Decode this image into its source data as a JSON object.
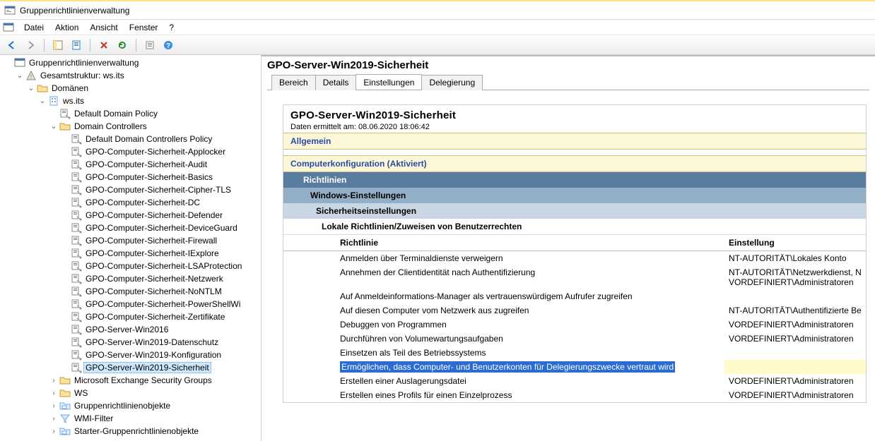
{
  "colors": {
    "accent_blue": "#2b6cd3",
    "highlight_yellow": "#fffac7",
    "cream_band": "#fdf7d9",
    "band1": "#5a7ca0",
    "band2": "#93aec7",
    "band3": "#c8d7e3",
    "tree_selection": "#cde8ff"
  },
  "window": {
    "title": "Gruppenrichtlinienverwaltung"
  },
  "menu": {
    "items": [
      "Datei",
      "Aktion",
      "Ansicht",
      "Fenster",
      "?"
    ]
  },
  "tree": {
    "root": "Gruppenrichtlinienverwaltung",
    "forest": "Gesamtstruktur: ws.its",
    "domains_label": "Domänen",
    "domain": "ws.its",
    "default_policy": "Default Domain Policy",
    "dc_container": "Domain Controllers",
    "gpos": [
      "Default Domain Controllers Policy",
      "GPO-Computer-Sicherheit-Applocker",
      "GPO-Computer-Sicherheit-Audit",
      "GPO-Computer-Sicherheit-Basics",
      "GPO-Computer-Sicherheit-Cipher-TLS",
      "GPO-Computer-Sicherheit-DC",
      "GPO-Computer-Sicherheit-Defender",
      "GPO-Computer-Sicherheit-DeviceGuard",
      "GPO-Computer-Sicherheit-Firewall",
      "GPO-Computer-Sicherheit-IExplore",
      "GPO-Computer-Sicherheit-LSAProtection",
      "GPO-Computer-Sicherheit-Netzwerk",
      "GPO-Computer-Sicherheit-NoNTLM",
      "GPO-Computer-Sicherheit-PowerShellWi",
      "GPO-Computer-Sicherheit-Zertifikate",
      "GPO-Server-Win2016",
      "GPO-Server-Win2019-Datenschutz",
      "GPO-Server-Win2019-Konfiguration",
      "GPO-Server-Win2019-Sicherheit"
    ],
    "selected": "GPO-Server-Win2019-Sicherheit",
    "siblings": [
      "Microsoft Exchange Security Groups",
      "WS",
      "Gruppenrichtlinienobjekte",
      "WMI-Filter",
      "Starter-Gruppenrichtlinienobjekte"
    ]
  },
  "detail": {
    "title": "GPO-Server-Win2019-Sicherheit",
    "tabs": [
      "Bereich",
      "Details",
      "Einstellungen",
      "Delegierung"
    ],
    "active_tab": "Einstellungen",
    "report": {
      "heading": "GPO-Server-Win2019-Sicherheit",
      "collected_label": "Daten ermittelt am: 08.06.2020 18:06:42",
      "section_general": "Allgemein",
      "section_compconf": "Computerkonfiguration (Aktiviert)",
      "lvl1": "Richtlinien",
      "lvl2": "Windows-Einstellungen",
      "lvl3": "Sicherheitseinstellungen",
      "lvl4": "Lokale Richtlinien/Zuweisen von Benutzerrechten",
      "col_policy": "Richtlinie",
      "col_setting": "Einstellung",
      "rows": [
        {
          "p": "Anmelden über Terminaldienste verweigern",
          "s": "NT-AUTORITÄT\\Lokales Konto"
        },
        {
          "p": "Annehmen der Clientidentität nach Authentifizierung",
          "s": "NT-AUTORITÄT\\Netzwerkdienst, N\nVORDEFINIERT\\Administratoren"
        },
        {
          "p": "Auf Anmeldeinformations-Manager als vertrauenswürdigem Aufrufer zugreifen",
          "s": ""
        },
        {
          "p": "Auf diesen Computer vom Netzwerk aus zugreifen",
          "s": "NT-AUTORITÄT\\Authentifizierte Be"
        },
        {
          "p": "Debuggen von Programmen",
          "s": "VORDEFINIERT\\Administratoren"
        },
        {
          "p": "Durchführen von Volumewartungsaufgaben",
          "s": "VORDEFINIERT\\Administratoren"
        },
        {
          "p": "Einsetzen als Teil des Betriebssystems",
          "s": ""
        },
        {
          "p": "Ermöglichen, dass Computer- und Benutzerkonten für Delegierungszwecke vertraut wird",
          "s": "",
          "hl": true
        },
        {
          "p": "Erstellen einer Auslagerungsdatei",
          "s": "VORDEFINIERT\\Administratoren"
        },
        {
          "p": "Erstellen eines Profils für einen Einzelprozess",
          "s": "VORDEFINIERT\\Administratoren"
        }
      ]
    }
  }
}
